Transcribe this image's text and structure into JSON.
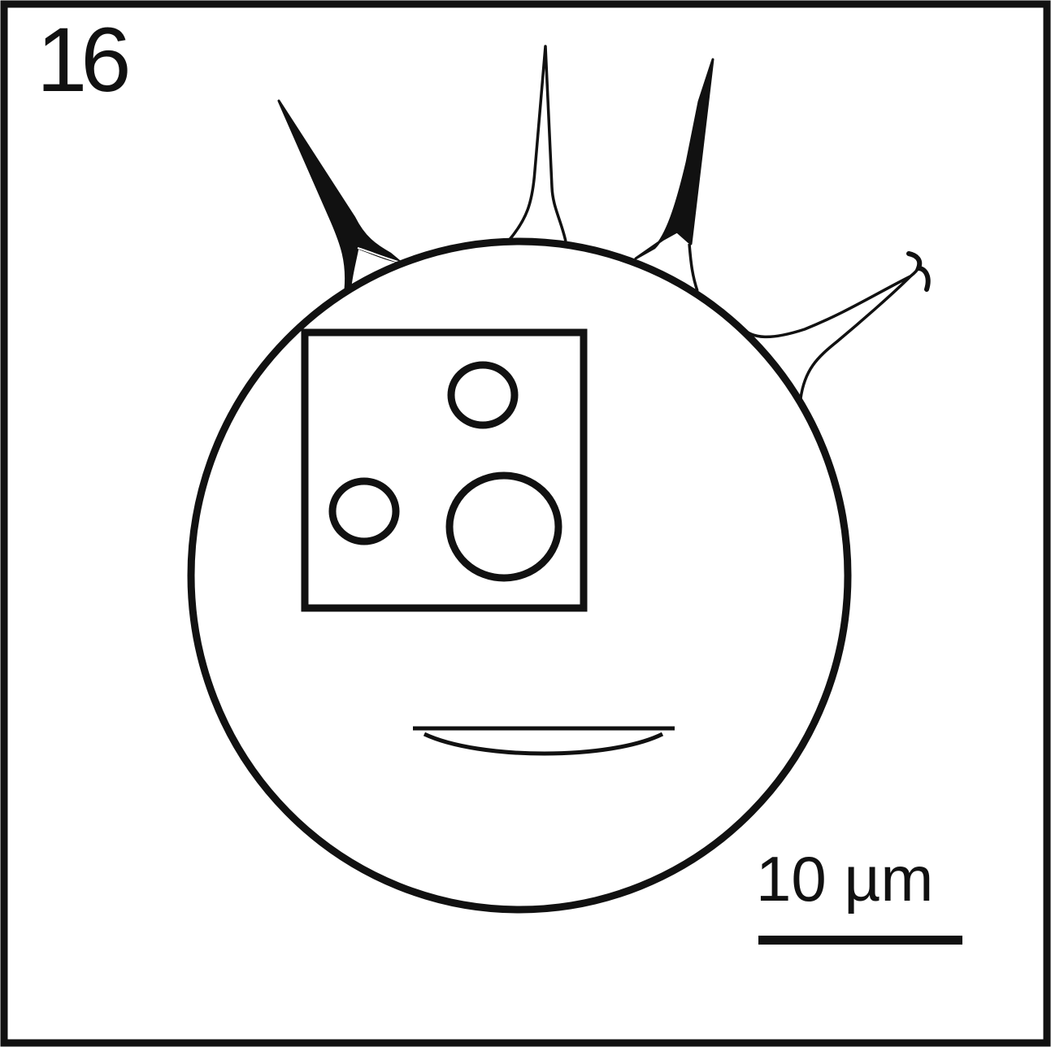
{
  "figure": {
    "number": "16",
    "scale_bar": {
      "label": "10 µm",
      "length_um": 10
    }
  },
  "colors": {
    "ink": "#111111",
    "background": "#ffffff"
  }
}
